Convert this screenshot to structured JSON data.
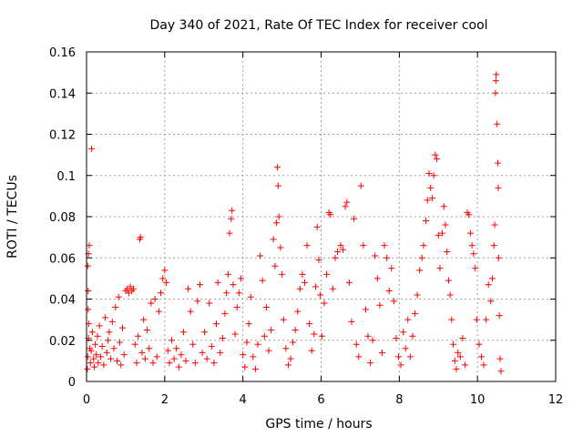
{
  "chart_data": {
    "type": "scatter",
    "title": "Day 340 of 2021, Rate Of TEC Index for receiver cool",
    "xlabel": "GPS time / hours",
    "ylabel": "ROTI / TECUs",
    "xlim": [
      0,
      12
    ],
    "ylim": [
      0,
      0.16
    ],
    "xticks": [
      0,
      2,
      4,
      6,
      8,
      10,
      12
    ],
    "yticks": [
      0,
      0.02,
      0.04,
      0.06,
      0.08,
      0.1,
      0.12,
      0.14,
      0.16
    ],
    "xtick_labels": [
      "0",
      "2",
      "4",
      "6",
      "8",
      "10",
      "12"
    ],
    "ytick_labels": [
      "0",
      "0.02",
      "0.04",
      "0.06",
      "0.08",
      "0.1",
      "0.12",
      "0.14",
      "0.16"
    ],
    "grid": true,
    "marker": "+",
    "color": "#ff0000",
    "series": [
      {
        "name": "ROTI",
        "points": [
          [
            0.02,
            0.006
          ],
          [
            0.03,
            0.012
          ],
          [
            0.05,
            0.021
          ],
          [
            0.06,
            0.028
          ],
          [
            0.04,
            0.035
          ],
          [
            0.03,
            0.056
          ],
          [
            0.05,
            0.062
          ],
          [
            0.07,
            0.066
          ],
          [
            0.04,
            0.044
          ],
          [
            0.08,
            0.016
          ],
          [
            0.1,
            0.009
          ],
          [
            0.12,
            0.015
          ],
          [
            0.13,
            0.113
          ],
          [
            0.15,
            0.024
          ],
          [
            0.18,
            0.011
          ],
          [
            0.2,
            0.007
          ],
          [
            0.22,
            0.018
          ],
          [
            0.25,
            0.013
          ],
          [
            0.28,
            0.022
          ],
          [
            0.3,
            0.009
          ],
          [
            0.33,
            0.027
          ],
          [
            0.36,
            0.012
          ],
          [
            0.4,
            0.017
          ],
          [
            0.44,
            0.008
          ],
          [
            0.48,
            0.031
          ],
          [
            0.52,
            0.014
          ],
          [
            0.55,
            0.02
          ],
          [
            0.58,
            0.024
          ],
          [
            0.62,
            0.011
          ],
          [
            0.66,
            0.029
          ],
          [
            0.7,
            0.016
          ],
          [
            0.74,
            0.036
          ],
          [
            0.78,
            0.01
          ],
          [
            0.82,
            0.041
          ],
          [
            0.85,
            0.019
          ],
          [
            0.88,
            0.008
          ],
          [
            0.92,
            0.026
          ],
          [
            0.96,
            0.013
          ],
          [
            1.0,
            0.044
          ],
          [
            1.04,
            0.045
          ],
          [
            1.08,
            0.043
          ],
          [
            1.12,
            0.046
          ],
          [
            1.16,
            0.044
          ],
          [
            1.2,
            0.045
          ],
          [
            1.24,
            0.018
          ],
          [
            1.28,
            0.009
          ],
          [
            1.32,
            0.022
          ],
          [
            1.36,
            0.069
          ],
          [
            1.38,
            0.07
          ],
          [
            1.42,
            0.014
          ],
          [
            1.46,
            0.03
          ],
          [
            1.5,
            0.011
          ],
          [
            1.55,
            0.025
          ],
          [
            1.6,
            0.016
          ],
          [
            1.65,
            0.038
          ],
          [
            1.7,
            0.009
          ],
          [
            1.75,
            0.04
          ],
          [
            1.8,
            0.012
          ],
          [
            1.85,
            0.034
          ],
          [
            1.9,
            0.043
          ],
          [
            1.95,
            0.05
          ],
          [
            2.0,
            0.054
          ],
          [
            2.04,
            0.048
          ],
          [
            2.08,
            0.015
          ],
          [
            2.12,
            0.009
          ],
          [
            2.18,
            0.02
          ],
          [
            2.24,
            0.011
          ],
          [
            2.3,
            0.016
          ],
          [
            2.36,
            0.007
          ],
          [
            2.42,
            0.013
          ],
          [
            2.48,
            0.024
          ],
          [
            2.54,
            0.01
          ],
          [
            2.6,
            0.045
          ],
          [
            2.66,
            0.034
          ],
          [
            2.72,
            0.018
          ],
          [
            2.78,
            0.009
          ],
          [
            2.84,
            0.039
          ],
          [
            2.9,
            0.047
          ],
          [
            2.96,
            0.014
          ],
          [
            3.02,
            0.024
          ],
          [
            3.08,
            0.011
          ],
          [
            3.14,
            0.038
          ],
          [
            3.2,
            0.017
          ],
          [
            3.26,
            0.009
          ],
          [
            3.32,
            0.028
          ],
          [
            3.36,
            0.048
          ],
          [
            3.42,
            0.014
          ],
          [
            3.48,
            0.021
          ],
          [
            3.54,
            0.033
          ],
          [
            3.58,
            0.043
          ],
          [
            3.62,
            0.052
          ],
          [
            3.66,
            0.072
          ],
          [
            3.7,
            0.079
          ],
          [
            3.72,
            0.083
          ],
          [
            3.75,
            0.047
          ],
          [
            3.8,
            0.023
          ],
          [
            3.85,
            0.036
          ],
          [
            3.9,
            0.043
          ],
          [
            3.95,
            0.05
          ],
          [
            4.0,
            0.013
          ],
          [
            4.05,
            0.007
          ],
          [
            4.1,
            0.019
          ],
          [
            4.15,
            0.028
          ],
          [
            4.2,
            0.041
          ],
          [
            4.26,
            0.012
          ],
          [
            4.32,
            0.006
          ],
          [
            4.38,
            0.018
          ],
          [
            4.44,
            0.061
          ],
          [
            4.5,
            0.049
          ],
          [
            4.55,
            0.022
          ],
          [
            4.6,
            0.036
          ],
          [
            4.66,
            0.015
          ],
          [
            4.72,
            0.025
          ],
          [
            4.78,
            0.069
          ],
          [
            4.82,
            0.056
          ],
          [
            4.86,
            0.077
          ],
          [
            4.88,
            0.104
          ],
          [
            4.9,
            0.095
          ],
          [
            4.92,
            0.08
          ],
          [
            4.96,
            0.065
          ],
          [
            5.0,
            0.052
          ],
          [
            5.04,
            0.03
          ],
          [
            5.1,
            0.016
          ],
          [
            5.16,
            0.008
          ],
          [
            5.22,
            0.011
          ],
          [
            5.28,
            0.019
          ],
          [
            5.34,
            0.025
          ],
          [
            5.4,
            0.034
          ],
          [
            5.46,
            0.045
          ],
          [
            5.52,
            0.052
          ],
          [
            5.58,
            0.048
          ],
          [
            5.64,
            0.066
          ],
          [
            5.7,
            0.028
          ],
          [
            5.76,
            0.015
          ],
          [
            5.82,
            0.023
          ],
          [
            5.86,
            0.046
          ],
          [
            5.9,
            0.075
          ],
          [
            5.94,
            0.059
          ],
          [
            5.98,
            0.042
          ],
          [
            6.02,
            0.022
          ],
          [
            6.08,
            0.038
          ],
          [
            6.14,
            0.052
          ],
          [
            6.2,
            0.082
          ],
          [
            6.24,
            0.081
          ],
          [
            6.3,
            0.045
          ],
          [
            6.36,
            0.06
          ],
          [
            6.42,
            0.063
          ],
          [
            6.5,
            0.066
          ],
          [
            6.56,
            0.064
          ],
          [
            6.62,
            0.085
          ],
          [
            6.66,
            0.087
          ],
          [
            6.72,
            0.048
          ],
          [
            6.78,
            0.029
          ],
          [
            6.84,
            0.079
          ],
          [
            6.9,
            0.018
          ],
          [
            6.96,
            0.012
          ],
          [
            7.02,
            0.095
          ],
          [
            7.08,
            0.066
          ],
          [
            7.14,
            0.035
          ],
          [
            7.2,
            0.022
          ],
          [
            7.26,
            0.009
          ],
          [
            7.32,
            0.02
          ],
          [
            7.38,
            0.061
          ],
          [
            7.44,
            0.05
          ],
          [
            7.5,
            0.037
          ],
          [
            7.56,
            0.014
          ],
          [
            7.62,
            0.066
          ],
          [
            7.68,
            0.06
          ],
          [
            7.74,
            0.044
          ],
          [
            7.8,
            0.055
          ],
          [
            7.86,
            0.039
          ],
          [
            7.92,
            0.021
          ],
          [
            7.98,
            0.012
          ],
          [
            8.04,
            0.008
          ],
          [
            8.1,
            0.024
          ],
          [
            8.16,
            0.016
          ],
          [
            8.22,
            0.03
          ],
          [
            8.28,
            0.012
          ],
          [
            8.34,
            0.022
          ],
          [
            8.4,
            0.033
          ],
          [
            8.46,
            0.042
          ],
          [
            8.52,
            0.054
          ],
          [
            8.58,
            0.06
          ],
          [
            8.62,
            0.066
          ],
          [
            8.68,
            0.078
          ],
          [
            8.72,
            0.088
          ],
          [
            8.76,
            0.101
          ],
          [
            8.8,
            0.094
          ],
          [
            8.84,
            0.089
          ],
          [
            8.88,
            0.1
          ],
          [
            8.92,
            0.11
          ],
          [
            8.96,
            0.108
          ],
          [
            9.0,
            0.071
          ],
          [
            9.04,
            0.055
          ],
          [
            9.1,
            0.072
          ],
          [
            9.14,
            0.085
          ],
          [
            9.18,
            0.076
          ],
          [
            9.22,
            0.063
          ],
          [
            9.26,
            0.049
          ],
          [
            9.3,
            0.042
          ],
          [
            9.34,
            0.03
          ],
          [
            9.38,
            0.018
          ],
          [
            9.42,
            0.01
          ],
          [
            9.46,
            0.006
          ],
          [
            9.5,
            0.014
          ],
          [
            9.56,
            0.012
          ],
          [
            9.62,
            0.021
          ],
          [
            9.68,
            0.008
          ],
          [
            9.74,
            0.082
          ],
          [
            9.78,
            0.081
          ],
          [
            9.82,
            0.072
          ],
          [
            9.86,
            0.066
          ],
          [
            9.9,
            0.062
          ],
          [
            9.94,
            0.055
          ],
          [
            9.98,
            0.03
          ],
          [
            10.04,
            0.018
          ],
          [
            10.1,
            0.012
          ],
          [
            10.16,
            0.008
          ],
          [
            10.22,
            0.03
          ],
          [
            10.28,
            0.047
          ],
          [
            10.34,
            0.039
          ],
          [
            10.38,
            0.05
          ],
          [
            10.42,
            0.066
          ],
          [
            10.44,
            0.076
          ],
          [
            10.46,
            0.14
          ],
          [
            10.47,
            0.146
          ],
          [
            10.48,
            0.149
          ],
          [
            10.5,
            0.125
          ],
          [
            10.52,
            0.106
          ],
          [
            10.53,
            0.094
          ],
          [
            10.54,
            0.06
          ],
          [
            10.56,
            0.032
          ],
          [
            10.58,
            0.011
          ],
          [
            10.6,
            0.005
          ]
        ]
      }
    ]
  }
}
